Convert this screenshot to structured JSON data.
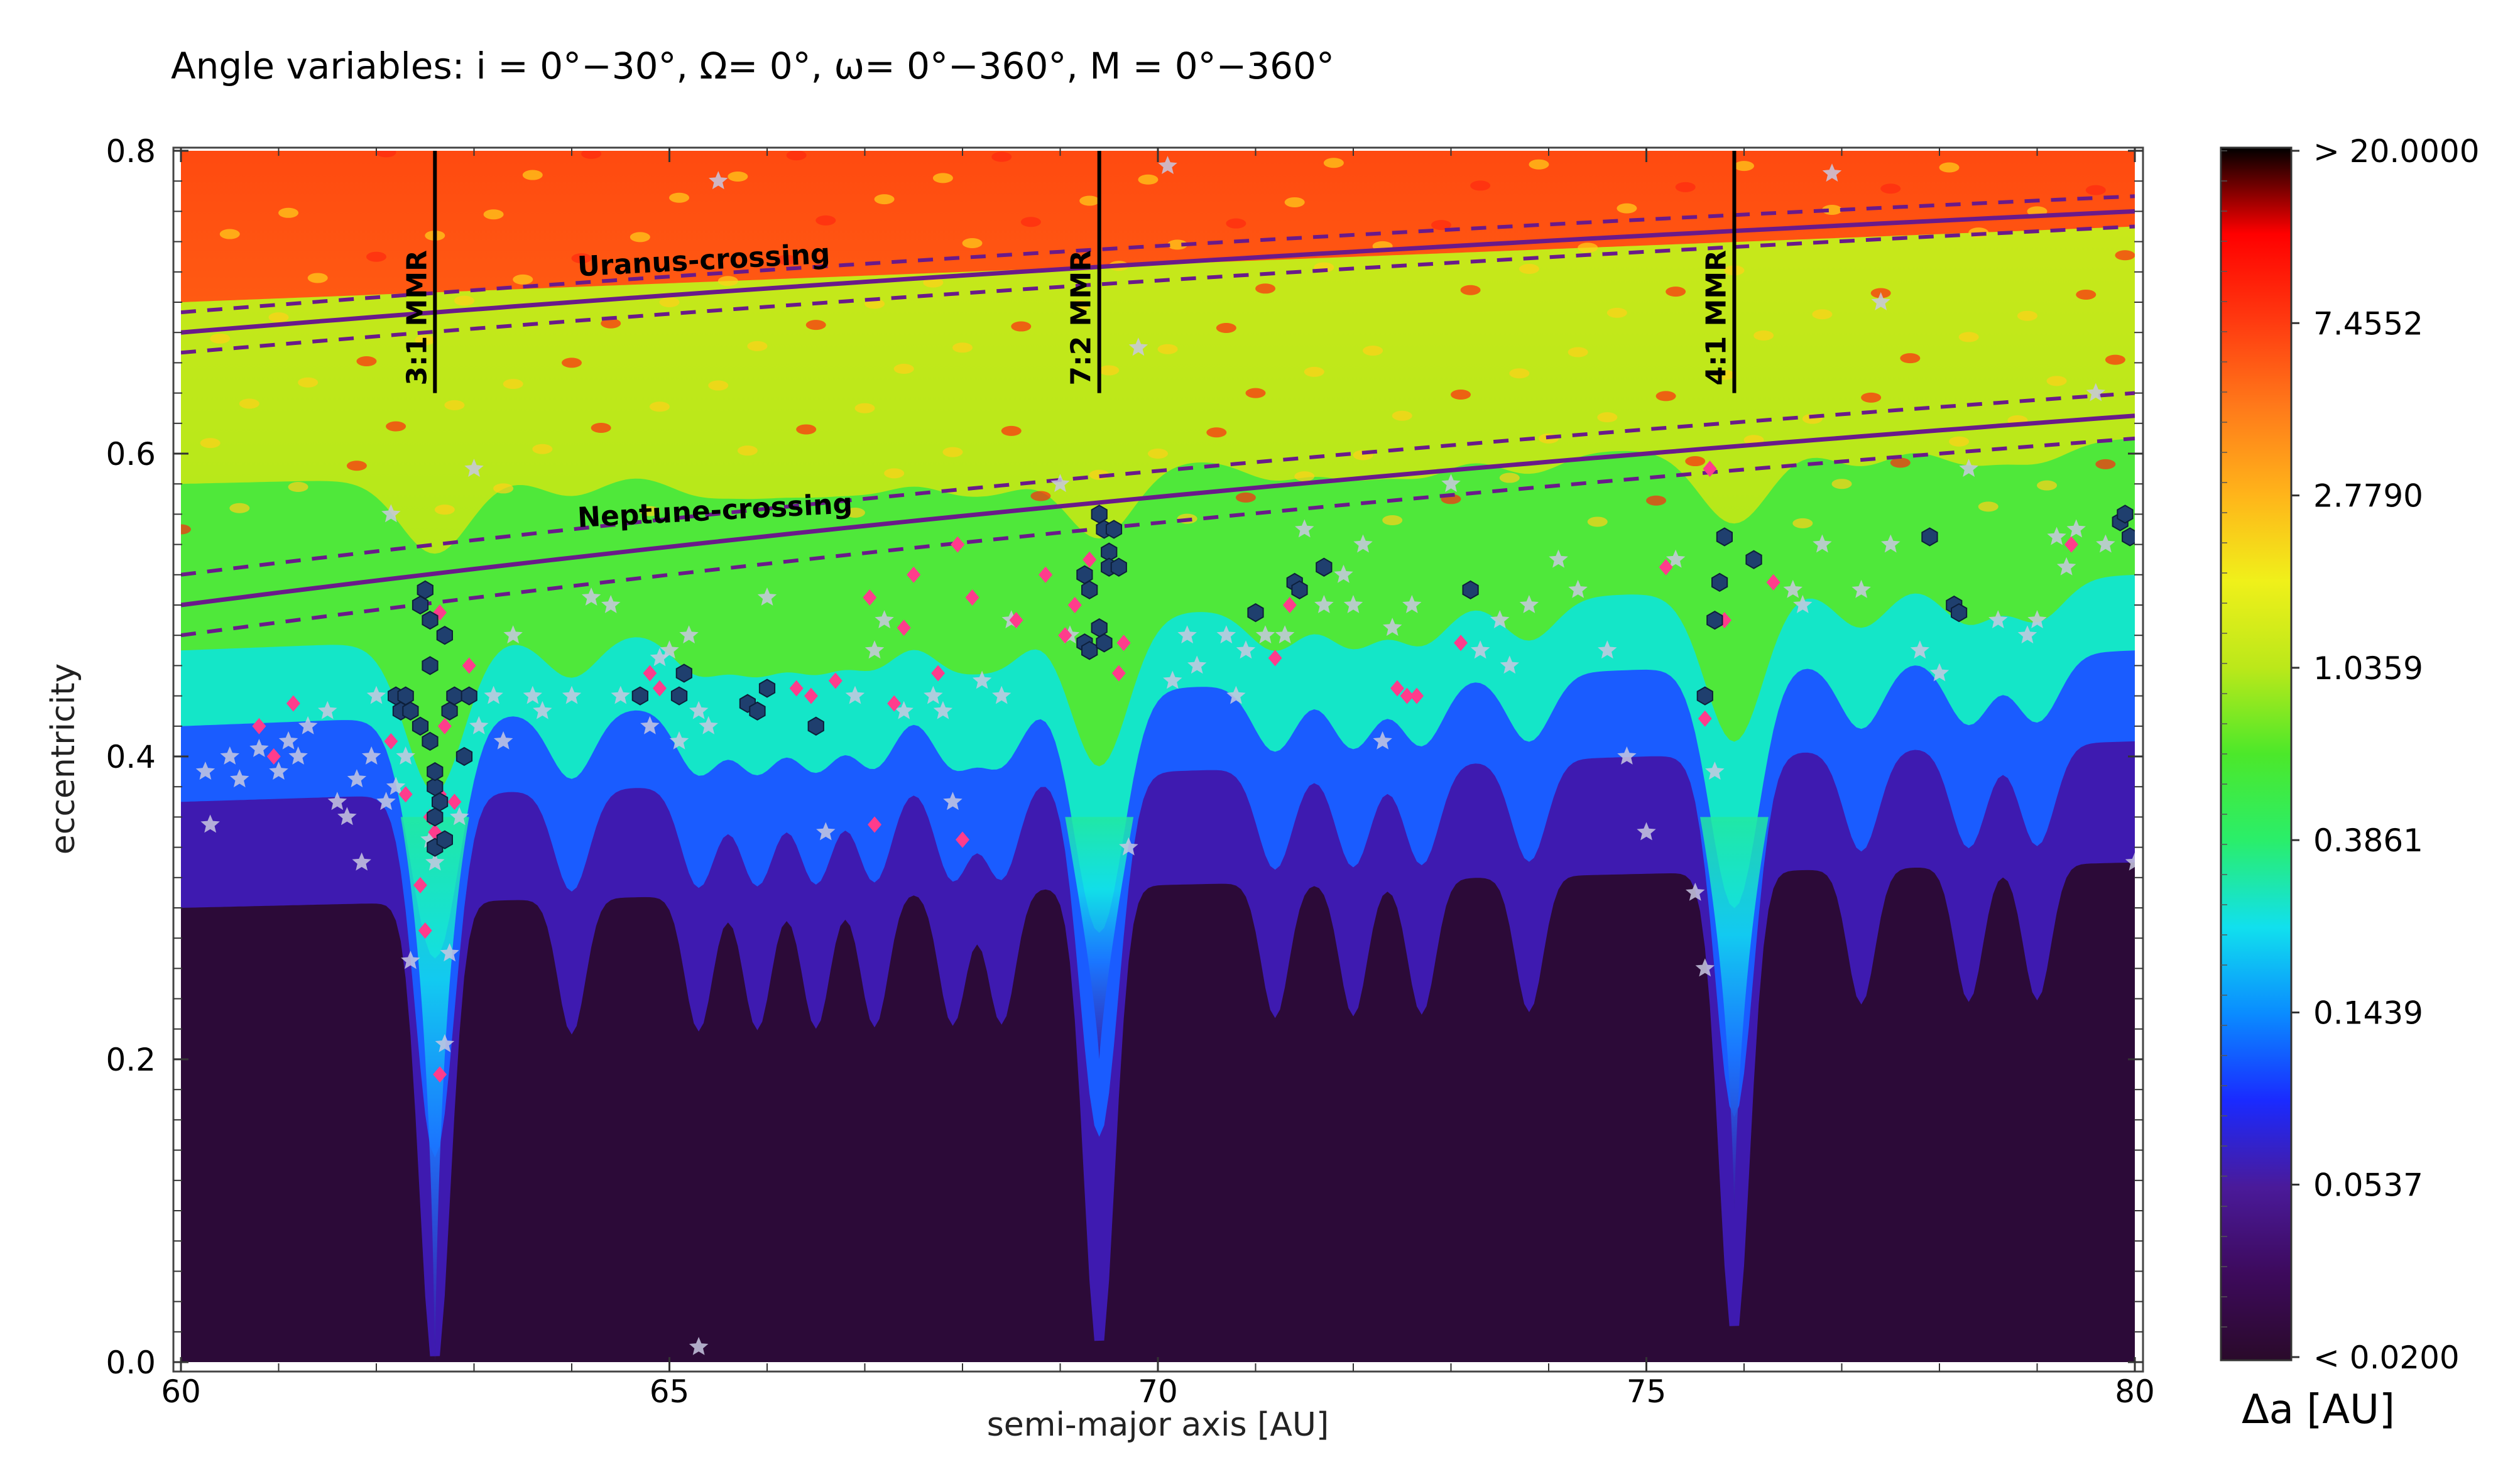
{
  "chart_data": {
    "type": "heatmap",
    "title": "Angle variables: i = 0°−30°, Ω= 0°, ω= 0°−360°, M = 0°−360°",
    "xlabel": "semi-major axis [AU]",
    "ylabel": "eccentricity",
    "xlim": [
      60,
      80
    ],
    "ylim": [
      0.0,
      0.8
    ],
    "x_ticks": [
      60,
      65,
      70,
      75,
      80
    ],
    "x_tick_labels": [
      "60",
      "65",
      "70",
      "75",
      "80"
    ],
    "y_ticks": [
      0.0,
      0.2,
      0.4,
      0.6,
      0.8
    ],
    "y_tick_labels": [
      "0.0",
      "0.2",
      "0.4",
      "0.6",
      "0.8"
    ],
    "colorbar": {
      "label": "Δa [AU]",
      "scale": "log",
      "range": [
        0.02,
        20.0
      ],
      "tick_values": [
        20.0,
        7.4552,
        2.779,
        1.0359,
        0.3861,
        0.1439,
        0.0537,
        0.02
      ],
      "tick_labels": [
        "> 20.0000",
        "7.4552",
        "2.7790",
        "1.0359",
        "0.3861",
        "0.1439",
        "0.0537",
        "<  0.0200"
      ],
      "colors": [
        "#2a0a2a",
        "#3d0a5c",
        "#4a1a9a",
        "#1a2aff",
        "#0a8cff",
        "#11e0ee",
        "#2aee6a",
        "#4ce82a",
        "#bbe81a",
        "#f0f01a",
        "#ffb41a",
        "#ff7a1a",
        "#ff3a10",
        "#ff0000",
        "#000000"
      ]
    },
    "resonances": [
      {
        "label": "3:1 MMR",
        "a": 62.6,
        "e_top": 0.8,
        "e_bottom": 0.64
      },
      {
        "label": "7:2 MMR",
        "a": 69.4,
        "e_top": 0.8,
        "e_bottom": 0.64
      },
      {
        "label": "4:1 MMR",
        "a": 75.9,
        "e_top": 0.8,
        "e_bottom": 0.64
      }
    ],
    "crossing_curves": [
      {
        "label": "Uranus-crossing",
        "q": 19.2,
        "band": 0.8
      },
      {
        "label": "Neptune-crossing",
        "q": 30.0,
        "band": 1.2
      }
    ],
    "curve_color": "#6a1a8a",
    "marker_colors": {
      "hexagon": "#1f3f6e",
      "diamond": "#ff3c8c",
      "star": "#c8c8e0"
    },
    "points_hexagon": [
      [
        62.45,
        0.5
      ],
      [
        62.5,
        0.51
      ],
      [
        62.55,
        0.49
      ],
      [
        62.2,
        0.44
      ],
      [
        62.25,
        0.43
      ],
      [
        62.3,
        0.44
      ],
      [
        62.35,
        0.43
      ],
      [
        62.45,
        0.42
      ],
      [
        62.55,
        0.46
      ],
      [
        62.55,
        0.41
      ],
      [
        62.6,
        0.38
      ],
      [
        62.6,
        0.39
      ],
      [
        62.65,
        0.37
      ],
      [
        62.7,
        0.48
      ],
      [
        62.6,
        0.34
      ],
      [
        62.7,
        0.345
      ],
      [
        62.6,
        0.36
      ],
      [
        62.75,
        0.43
      ],
      [
        62.8,
        0.44
      ],
      [
        62.9,
        0.4
      ],
      [
        62.95,
        0.44
      ],
      [
        64.7,
        0.44
      ],
      [
        65.1,
        0.44
      ],
      [
        65.15,
        0.455
      ],
      [
        65.8,
        0.435
      ],
      [
        65.9,
        0.43
      ],
      [
        66.0,
        0.445
      ],
      [
        66.5,
        0.42
      ],
      [
        69.25,
        0.52
      ],
      [
        69.3,
        0.51
      ],
      [
        69.4,
        0.56
      ],
      [
        69.45,
        0.55
      ],
      [
        69.5,
        0.535
      ],
      [
        69.5,
        0.525
      ],
      [
        69.55,
        0.55
      ],
      [
        69.6,
        0.525
      ],
      [
        69.25,
        0.475
      ],
      [
        69.3,
        0.47
      ],
      [
        69.4,
        0.485
      ],
      [
        69.45,
        0.475
      ],
      [
        71.0,
        0.495
      ],
      [
        71.4,
        0.515
      ],
      [
        71.45,
        0.51
      ],
      [
        71.7,
        0.525
      ],
      [
        73.2,
        0.51
      ],
      [
        75.6,
        0.44
      ],
      [
        75.7,
        0.49
      ],
      [
        75.75,
        0.515
      ],
      [
        75.8,
        0.545
      ],
      [
        76.1,
        0.53
      ],
      [
        77.9,
        0.545
      ],
      [
        78.15,
        0.5
      ],
      [
        78.2,
        0.495
      ],
      [
        79.85,
        0.555
      ],
      [
        79.9,
        0.56
      ],
      [
        79.95,
        0.545
      ]
    ],
    "points_diamond": [
      [
        60.8,
        0.42
      ],
      [
        60.95,
        0.4
      ],
      [
        61.15,
        0.435
      ],
      [
        62.15,
        0.41
      ],
      [
        62.3,
        0.375
      ],
      [
        62.45,
        0.315
      ],
      [
        62.5,
        0.285
      ],
      [
        62.55,
        0.36
      ],
      [
        62.6,
        0.35
      ],
      [
        62.65,
        0.375
      ],
      [
        62.7,
        0.42
      ],
      [
        62.65,
        0.19
      ],
      [
        62.65,
        0.495
      ],
      [
        62.8,
        0.37
      ],
      [
        62.95,
        0.46
      ],
      [
        64.8,
        0.455
      ],
      [
        64.9,
        0.445
      ],
      [
        66.3,
        0.445
      ],
      [
        66.45,
        0.44
      ],
      [
        66.7,
        0.45
      ],
      [
        67.05,
        0.505
      ],
      [
        67.1,
        0.355
      ],
      [
        67.3,
        0.435
      ],
      [
        67.4,
        0.485
      ],
      [
        67.5,
        0.52
      ],
      [
        67.75,
        0.455
      ],
      [
        67.95,
        0.54
      ],
      [
        68.0,
        0.345
      ],
      [
        68.1,
        0.505
      ],
      [
        68.55,
        0.49
      ],
      [
        68.85,
        0.52
      ],
      [
        69.05,
        0.48
      ],
      [
        69.15,
        0.5
      ],
      [
        69.3,
        0.53
      ],
      [
        69.65,
        0.475
      ],
      [
        69.6,
        0.455
      ],
      [
        71.2,
        0.465
      ],
      [
        71.35,
        0.5
      ],
      [
        72.45,
        0.445
      ],
      [
        72.55,
        0.44
      ],
      [
        72.65,
        0.44
      ],
      [
        73.1,
        0.475
      ],
      [
        75.2,
        0.525
      ],
      [
        75.6,
        0.425
      ],
      [
        75.65,
        0.59
      ],
      [
        75.8,
        0.49
      ],
      [
        76.3,
        0.515
      ],
      [
        79.35,
        0.54
      ]
    ],
    "points_star": [
      [
        60.25,
        0.39
      ],
      [
        60.3,
        0.355
      ],
      [
        60.5,
        0.4
      ],
      [
        60.6,
        0.385
      ],
      [
        60.8,
        0.405
      ],
      [
        61.0,
        0.39
      ],
      [
        61.1,
        0.41
      ],
      [
        61.2,
        0.4
      ],
      [
        61.3,
        0.42
      ],
      [
        61.5,
        0.43
      ],
      [
        61.6,
        0.37
      ],
      [
        61.7,
        0.36
      ],
      [
        61.8,
        0.385
      ],
      [
        61.85,
        0.33
      ],
      [
        61.95,
        0.4
      ],
      [
        62.0,
        0.44
      ],
      [
        62.1,
        0.37
      ],
      [
        62.2,
        0.38
      ],
      [
        62.3,
        0.4
      ],
      [
        62.15,
        0.56
      ],
      [
        62.35,
        0.265
      ],
      [
        62.55,
        0.345
      ],
      [
        62.6,
        0.33
      ],
      [
        62.7,
        0.21
      ],
      [
        62.75,
        0.27
      ],
      [
        62.85,
        0.36
      ],
      [
        63.0,
        0.59
      ],
      [
        63.05,
        0.42
      ],
      [
        63.2,
        0.44
      ],
      [
        63.3,
        0.41
      ],
      [
        63.4,
        0.48
      ],
      [
        63.6,
        0.44
      ],
      [
        63.7,
        0.43
      ],
      [
        64.0,
        0.44
      ],
      [
        64.2,
        0.505
      ],
      [
        64.4,
        0.5
      ],
      [
        64.5,
        0.44
      ],
      [
        64.8,
        0.42
      ],
      [
        64.9,
        0.465
      ],
      [
        65.0,
        0.47
      ],
      [
        65.1,
        0.41
      ],
      [
        65.2,
        0.48
      ],
      [
        65.3,
        0.43
      ],
      [
        65.4,
        0.42
      ],
      [
        65.5,
        0.78
      ],
      [
        65.3,
        0.01
      ],
      [
        66.0,
        0.505
      ],
      [
        66.6,
        0.35
      ],
      [
        66.9,
        0.44
      ],
      [
        67.1,
        0.47
      ],
      [
        67.2,
        0.49
      ],
      [
        67.4,
        0.43
      ],
      [
        67.7,
        0.44
      ],
      [
        67.8,
        0.43
      ],
      [
        67.9,
        0.37
      ],
      [
        68.2,
        0.45
      ],
      [
        68.4,
        0.44
      ],
      [
        68.5,
        0.49
      ],
      [
        69.0,
        0.58
      ],
      [
        69.1,
        0.48
      ],
      [
        69.7,
        0.34
      ],
      [
        69.8,
        0.67
      ],
      [
        70.1,
        0.79
      ],
      [
        70.15,
        0.45
      ],
      [
        70.3,
        0.48
      ],
      [
        70.4,
        0.46
      ],
      [
        70.7,
        0.48
      ],
      [
        70.8,
        0.44
      ],
      [
        70.9,
        0.47
      ],
      [
        71.1,
        0.48
      ],
      [
        71.3,
        0.48
      ],
      [
        71.5,
        0.55
      ],
      [
        71.7,
        0.5
      ],
      [
        71.9,
        0.52
      ],
      [
        72.0,
        0.5
      ],
      [
        72.1,
        0.54
      ],
      [
        72.3,
        0.41
      ],
      [
        72.4,
        0.485
      ],
      [
        72.6,
        0.5
      ],
      [
        73.0,
        0.58
      ],
      [
        73.3,
        0.47
      ],
      [
        73.5,
        0.49
      ],
      [
        73.6,
        0.46
      ],
      [
        73.8,
        0.5
      ],
      [
        74.1,
        0.53
      ],
      [
        74.3,
        0.51
      ],
      [
        74.6,
        0.47
      ],
      [
        74.8,
        0.4
      ],
      [
        75.0,
        0.35
      ],
      [
        75.3,
        0.53
      ],
      [
        75.5,
        0.31
      ],
      [
        75.6,
        0.26
      ],
      [
        75.7,
        0.39
      ],
      [
        76.5,
        0.51
      ],
      [
        76.6,
        0.5
      ],
      [
        76.8,
        0.54
      ],
      [
        76.9,
        0.785
      ],
      [
        77.2,
        0.51
      ],
      [
        77.4,
        0.7
      ],
      [
        77.5,
        0.54
      ],
      [
        77.8,
        0.47
      ],
      [
        78.0,
        0.455
      ],
      [
        78.3,
        0.59
      ],
      [
        78.6,
        0.49
      ],
      [
        78.9,
        0.48
      ],
      [
        79.0,
        0.49
      ],
      [
        79.2,
        0.545
      ],
      [
        79.3,
        0.525
      ],
      [
        79.4,
        0.55
      ],
      [
        79.6,
        0.64
      ],
      [
        79.7,
        0.54
      ],
      [
        80.0,
        0.33
      ]
    ]
  }
}
